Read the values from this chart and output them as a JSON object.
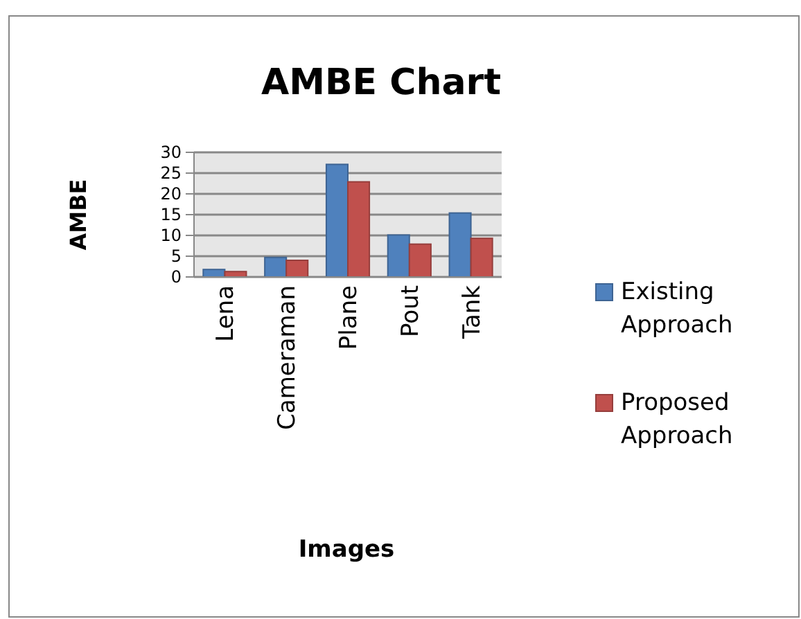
{
  "chart_data": {
    "type": "bar",
    "title": "AMBE Chart",
    "xlabel": "Images",
    "ylabel": "AMBE",
    "categories": [
      "Lena",
      "Cameraman",
      "Plane",
      "Pout",
      "Tank"
    ],
    "series": [
      {
        "name": "Existing Approach",
        "color": "#4f81bd",
        "values": [
          1.8,
          4.7,
          27.1,
          10.1,
          15.4
        ]
      },
      {
        "name": "Proposed Approach",
        "color": "#c0504d",
        "values": [
          1.3,
          4.0,
          22.9,
          7.9,
          9.3
        ]
      }
    ],
    "ylim": [
      0,
      30
    ],
    "yticks": [
      0,
      5,
      10,
      15,
      20,
      25,
      30
    ],
    "grid": "y",
    "legend": "right"
  }
}
